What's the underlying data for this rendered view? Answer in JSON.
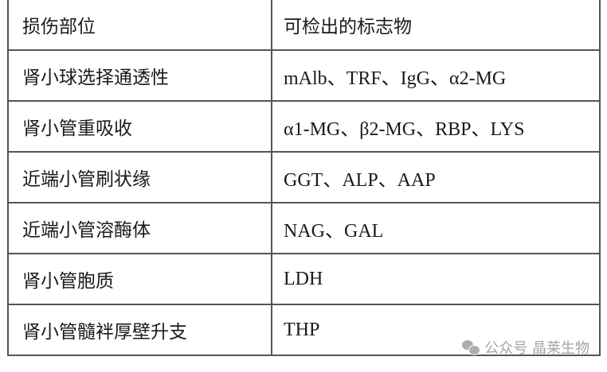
{
  "table": {
    "headers": [
      "损伤部位",
      "可检出的标志物"
    ],
    "rows": [
      [
        "肾小球选择通透性",
        "mAlb、TRF、IgG、α2-MG"
      ],
      [
        "肾小管重吸收",
        "α1-MG、β2-MG、RBP、LYS"
      ],
      [
        "近端小管刷状缘",
        "GGT、ALP、AAP"
      ],
      [
        "近端小管溶酶体",
        "NAG、GAL"
      ],
      [
        "肾小管胞质",
        "LDH"
      ],
      [
        "肾小管髓袢厚壁升支",
        "THP"
      ]
    ]
  },
  "watermark": {
    "icon": "wechat-icon",
    "text": "公众号 晶莱生物"
  }
}
